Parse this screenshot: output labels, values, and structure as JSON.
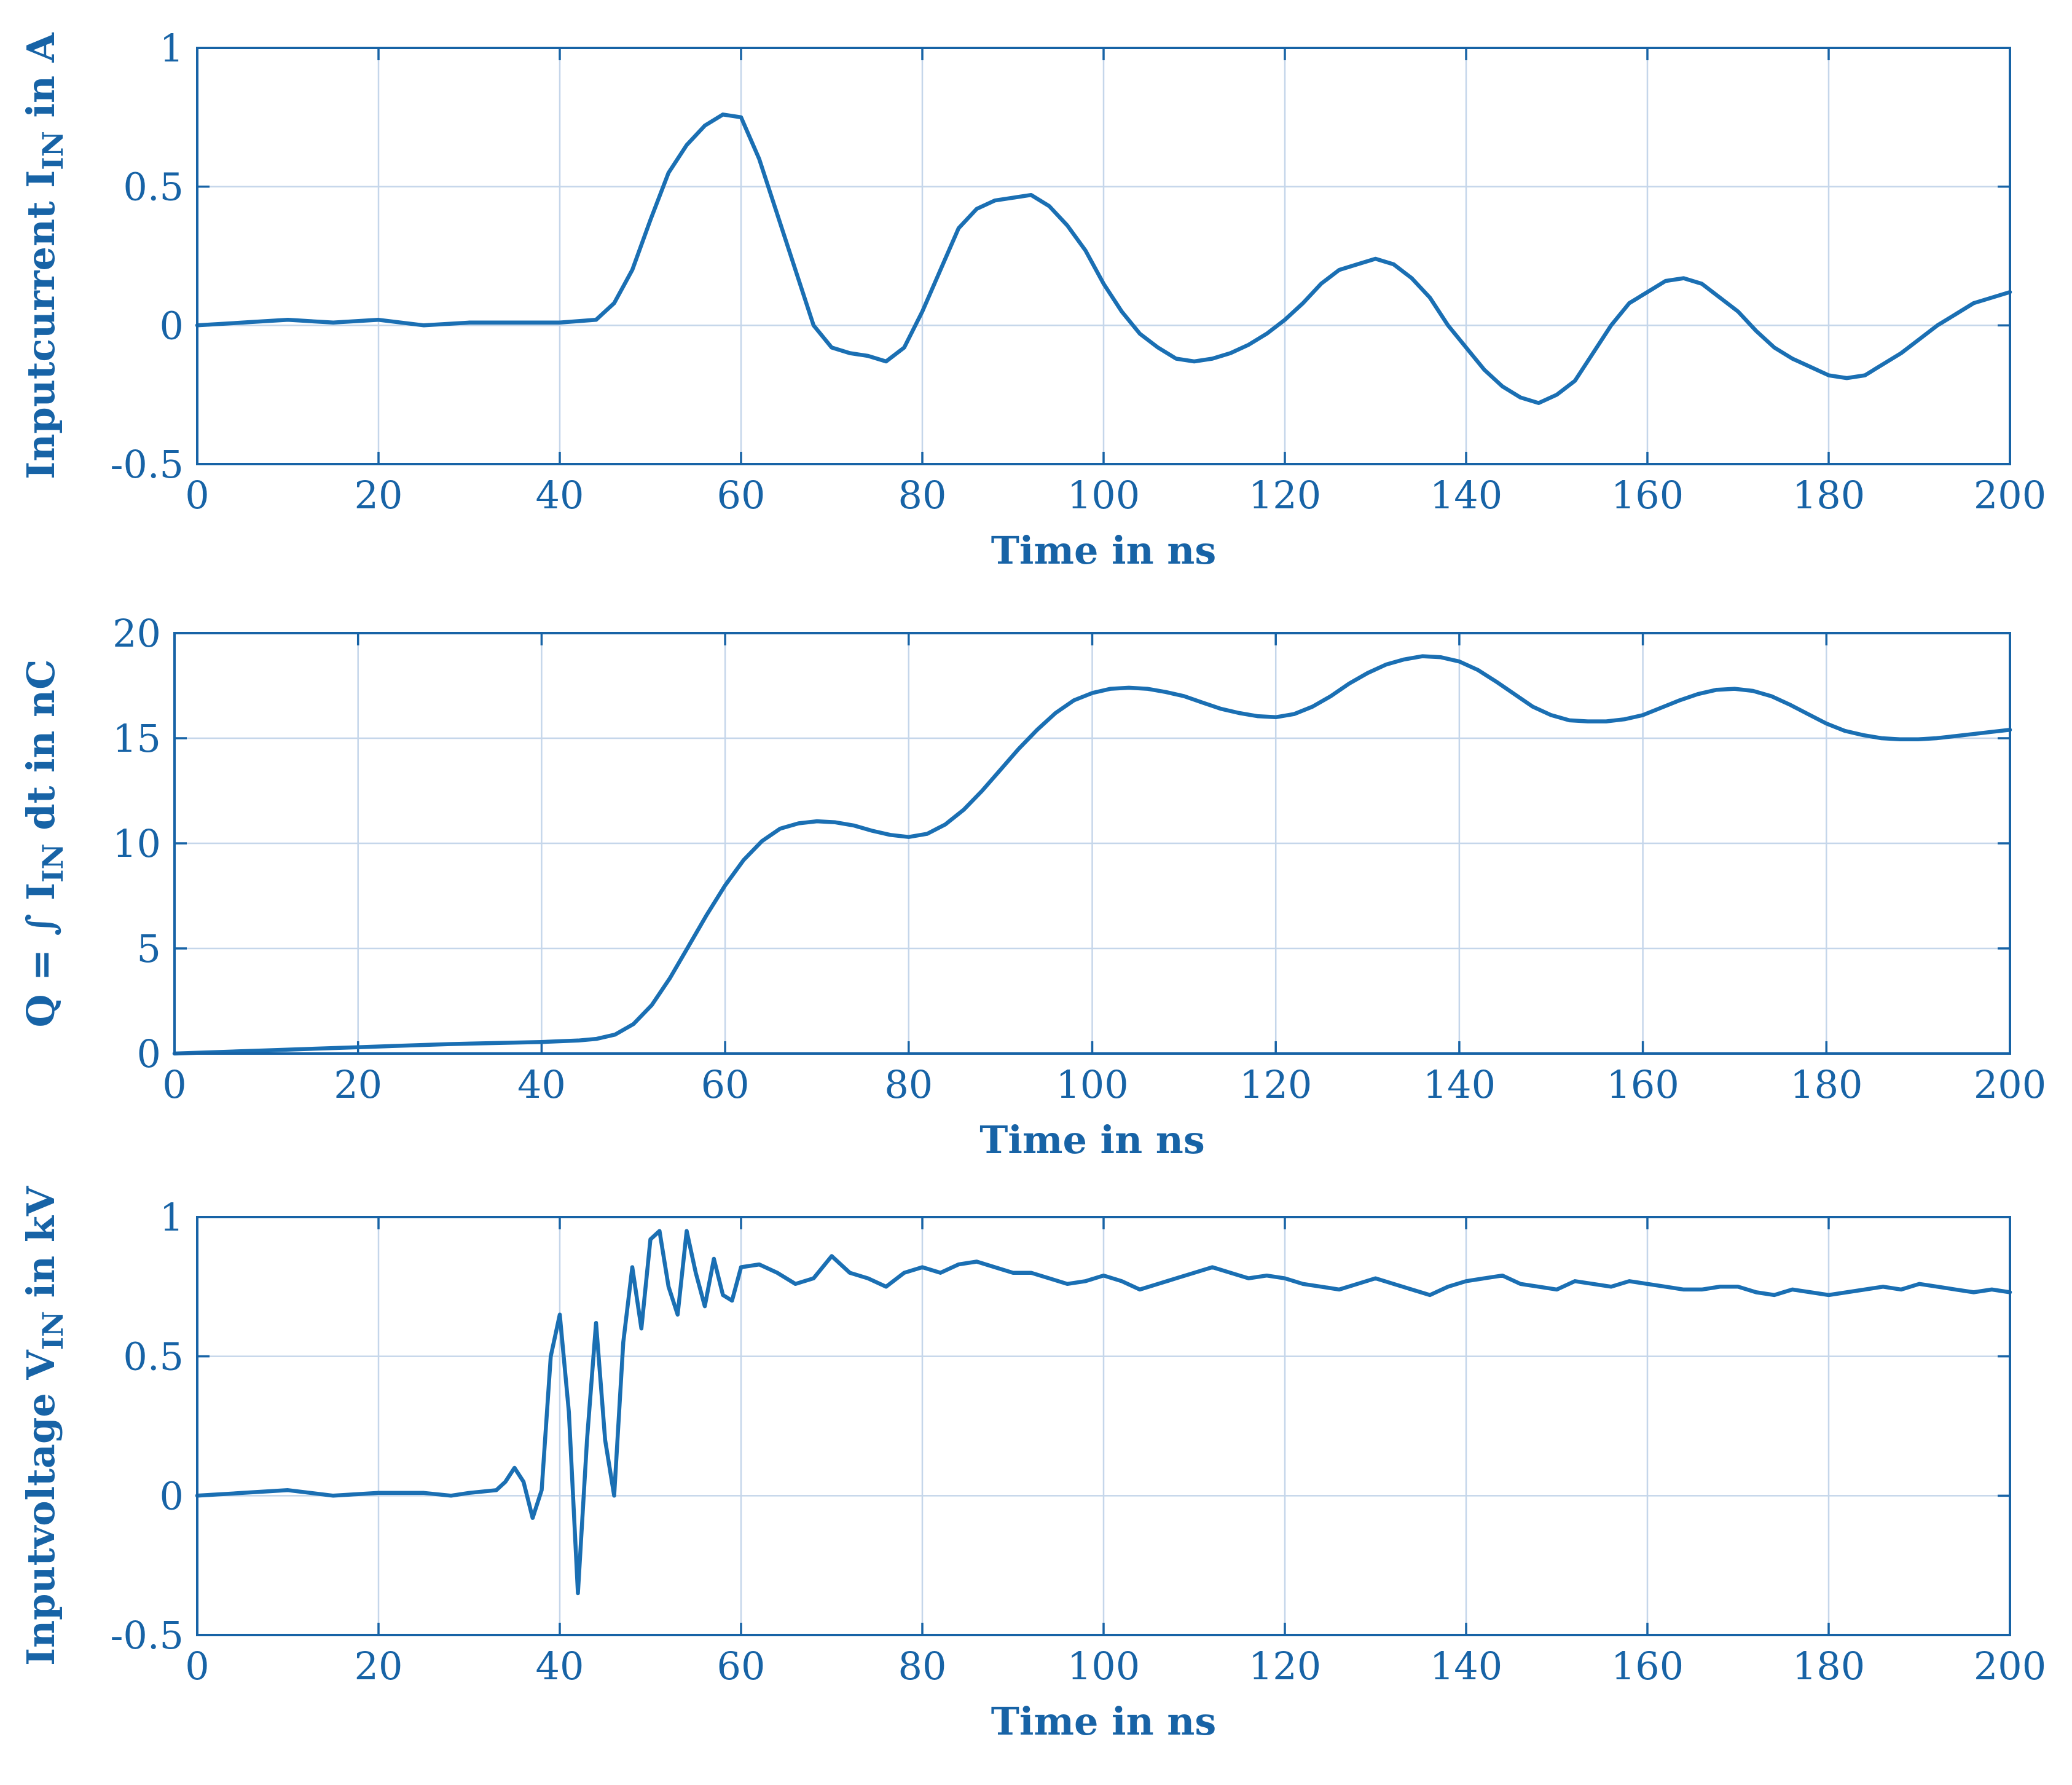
{
  "chart_data": [
    {
      "type": "line",
      "xlabel": "Time in ns",
      "ylabel": {
        "main": "Inputcurrent I",
        "sub": "IN",
        "suffix": " in A"
      },
      "xlim": [
        0,
        200
      ],
      "ylim": [
        -0.5,
        1
      ],
      "xticks": [
        "0",
        "20",
        "40",
        "60",
        "80",
        "100",
        "120",
        "140",
        "160",
        "180",
        "200"
      ],
      "yticks": [
        "-0.5",
        "0",
        "0.5",
        "1"
      ],
      "grid": true,
      "color": "#1a6fb3",
      "series": [
        {
          "name": "Inputcurrent",
          "x": [
            0,
            5,
            10,
            15,
            20,
            25,
            30,
            35,
            40,
            44,
            46,
            48,
            50,
            52,
            54,
            56,
            58,
            60,
            62,
            64,
            66,
            68,
            70,
            72,
            74,
            76,
            78,
            80,
            82,
            84,
            86,
            88,
            90,
            92,
            94,
            96,
            98,
            100,
            102,
            104,
            106,
            108,
            110,
            112,
            114,
            116,
            118,
            120,
            122,
            124,
            126,
            128,
            130,
            132,
            134,
            136,
            138,
            140,
            142,
            144,
            146,
            148,
            150,
            152,
            154,
            156,
            158,
            160,
            162,
            164,
            166,
            168,
            170,
            172,
            174,
            176,
            178,
            180,
            182,
            184,
            186,
            188,
            190,
            192,
            194,
            196,
            198,
            200
          ],
          "y": [
            0.0,
            0.01,
            0.02,
            0.01,
            0.02,
            0.0,
            0.01,
            0.01,
            0.01,
            0.02,
            0.08,
            0.2,
            0.38,
            0.55,
            0.65,
            0.72,
            0.76,
            0.75,
            0.6,
            0.4,
            0.2,
            0.0,
            -0.08,
            -0.1,
            -0.11,
            -0.13,
            -0.08,
            0.05,
            0.2,
            0.35,
            0.42,
            0.45,
            0.46,
            0.47,
            0.43,
            0.36,
            0.27,
            0.15,
            0.05,
            -0.03,
            -0.08,
            -0.12,
            -0.13,
            -0.12,
            -0.1,
            -0.07,
            -0.03,
            0.02,
            0.08,
            0.15,
            0.2,
            0.22,
            0.24,
            0.22,
            0.17,
            0.1,
            0.0,
            -0.08,
            -0.16,
            -0.22,
            -0.26,
            -0.28,
            -0.25,
            -0.2,
            -0.1,
            0.0,
            0.08,
            0.12,
            0.16,
            0.17,
            0.15,
            0.1,
            0.05,
            -0.02,
            -0.08,
            -0.12,
            -0.15,
            -0.18,
            -0.19,
            -0.18,
            -0.14,
            -0.1,
            -0.05,
            0.0,
            0.04,
            0.08,
            0.1,
            0.12
          ]
        }
      ]
    },
    {
      "type": "line",
      "xlabel": "Time in ns",
      "ylabel": {
        "main": "Q = ∫ I",
        "sub": "IN",
        "suffix": " dt in nC"
      },
      "xlim": [
        0,
        200
      ],
      "ylim": [
        0,
        20
      ],
      "xticks": [
        "0",
        "20",
        "40",
        "60",
        "80",
        "100",
        "120",
        "140",
        "160",
        "180",
        "200"
      ],
      "yticks": [
        "0",
        "5",
        "10",
        "15",
        "20"
      ],
      "grid": true,
      "color": "#1a6fb3",
      "series": [
        {
          "name": "Q",
          "x": [
            0,
            10,
            20,
            30,
            40,
            44,
            46,
            48,
            50,
            52,
            54,
            56,
            58,
            60,
            62,
            64,
            66,
            68,
            70,
            72,
            74,
            76,
            78,
            80,
            82,
            84,
            86,
            88,
            90,
            92,
            94,
            96,
            98,
            100,
            102,
            104,
            106,
            108,
            110,
            112,
            114,
            116,
            118,
            120,
            122,
            124,
            126,
            128,
            130,
            132,
            134,
            136,
            138,
            140,
            142,
            144,
            146,
            148,
            150,
            152,
            154,
            156,
            158,
            160,
            162,
            164,
            166,
            168,
            170,
            172,
            174,
            176,
            178,
            180,
            182,
            184,
            186,
            188,
            190,
            192,
            194,
            196,
            198,
            200
          ],
          "y": [
            0.0,
            0.15,
            0.3,
            0.45,
            0.55,
            0.62,
            0.7,
            0.9,
            1.4,
            2.3,
            3.6,
            5.1,
            6.6,
            8.0,
            9.2,
            10.1,
            10.7,
            10.95,
            11.05,
            11.0,
            10.85,
            10.6,
            10.4,
            10.3,
            10.45,
            10.9,
            11.6,
            12.5,
            13.5,
            14.5,
            15.4,
            16.2,
            16.8,
            17.15,
            17.35,
            17.4,
            17.35,
            17.2,
            17.0,
            16.7,
            16.4,
            16.2,
            16.05,
            16.0,
            16.15,
            16.5,
            17.0,
            17.6,
            18.1,
            18.5,
            18.75,
            18.9,
            18.85,
            18.65,
            18.25,
            17.7,
            17.1,
            16.5,
            16.1,
            15.85,
            15.8,
            15.8,
            15.9,
            16.1,
            16.45,
            16.8,
            17.1,
            17.3,
            17.35,
            17.25,
            17.0,
            16.6,
            16.15,
            15.7,
            15.35,
            15.15,
            15.0,
            14.95,
            14.95,
            15.0,
            15.1,
            15.2,
            15.3,
            15.4
          ]
        }
      ]
    },
    {
      "type": "line",
      "xlabel": "Time in ns",
      "ylabel": {
        "main": "Inputvoltage V",
        "sub": "IN",
        "suffix": " in kV"
      },
      "xlim": [
        0,
        200
      ],
      "ylim": [
        -0.5,
        1
      ],
      "xticks": [
        "0",
        "20",
        "40",
        "60",
        "80",
        "100",
        "120",
        "140",
        "160",
        "180",
        "200"
      ],
      "yticks": [
        "-0.5",
        "0",
        "0.5",
        "1"
      ],
      "grid": true,
      "color": "#1a6fb3",
      "series": [
        {
          "name": "Inputvoltage",
          "x": [
            0,
            5,
            10,
            15,
            20,
            25,
            28,
            30,
            33,
            34,
            35,
            36,
            37,
            38,
            39,
            40,
            41,
            42,
            43,
            44,
            45,
            46,
            47,
            48,
            49,
            50,
            51,
            52,
            53,
            54,
            55,
            56,
            57,
            58,
            59,
            60,
            62,
            64,
            66,
            68,
            70,
            72,
            74,
            76,
            78,
            80,
            82,
            84,
            86,
            88,
            90,
            92,
            94,
            96,
            98,
            100,
            102,
            104,
            106,
            108,
            110,
            112,
            114,
            116,
            118,
            120,
            122,
            124,
            126,
            128,
            130,
            132,
            134,
            136,
            138,
            140,
            142,
            144,
            146,
            148,
            150,
            152,
            154,
            156,
            158,
            160,
            162,
            164,
            166,
            168,
            170,
            172,
            174,
            176,
            178,
            180,
            182,
            184,
            186,
            188,
            190,
            192,
            194,
            196,
            198,
            200
          ],
          "y": [
            0.0,
            0.01,
            0.02,
            0.0,
            0.01,
            0.01,
            0.0,
            0.01,
            0.02,
            0.05,
            0.1,
            0.05,
            -0.08,
            0.02,
            0.5,
            0.65,
            0.3,
            -0.35,
            0.2,
            0.62,
            0.2,
            0.0,
            0.55,
            0.82,
            0.6,
            0.92,
            0.95,
            0.75,
            0.65,
            0.95,
            0.8,
            0.68,
            0.85,
            0.72,
            0.7,
            0.82,
            0.83,
            0.8,
            0.76,
            0.78,
            0.86,
            0.8,
            0.78,
            0.75,
            0.8,
            0.82,
            0.8,
            0.83,
            0.84,
            0.82,
            0.8,
            0.8,
            0.78,
            0.76,
            0.77,
            0.79,
            0.77,
            0.74,
            0.76,
            0.78,
            0.8,
            0.82,
            0.8,
            0.78,
            0.79,
            0.78,
            0.76,
            0.75,
            0.74,
            0.76,
            0.78,
            0.76,
            0.74,
            0.72,
            0.75,
            0.77,
            0.78,
            0.79,
            0.76,
            0.75,
            0.74,
            0.77,
            0.76,
            0.75,
            0.77,
            0.76,
            0.75,
            0.74,
            0.74,
            0.75,
            0.75,
            0.73,
            0.72,
            0.74,
            0.73,
            0.72,
            0.73,
            0.74,
            0.75,
            0.74,
            0.76,
            0.75,
            0.74,
            0.73,
            0.74,
            0.73
          ]
        }
      ]
    }
  ]
}
